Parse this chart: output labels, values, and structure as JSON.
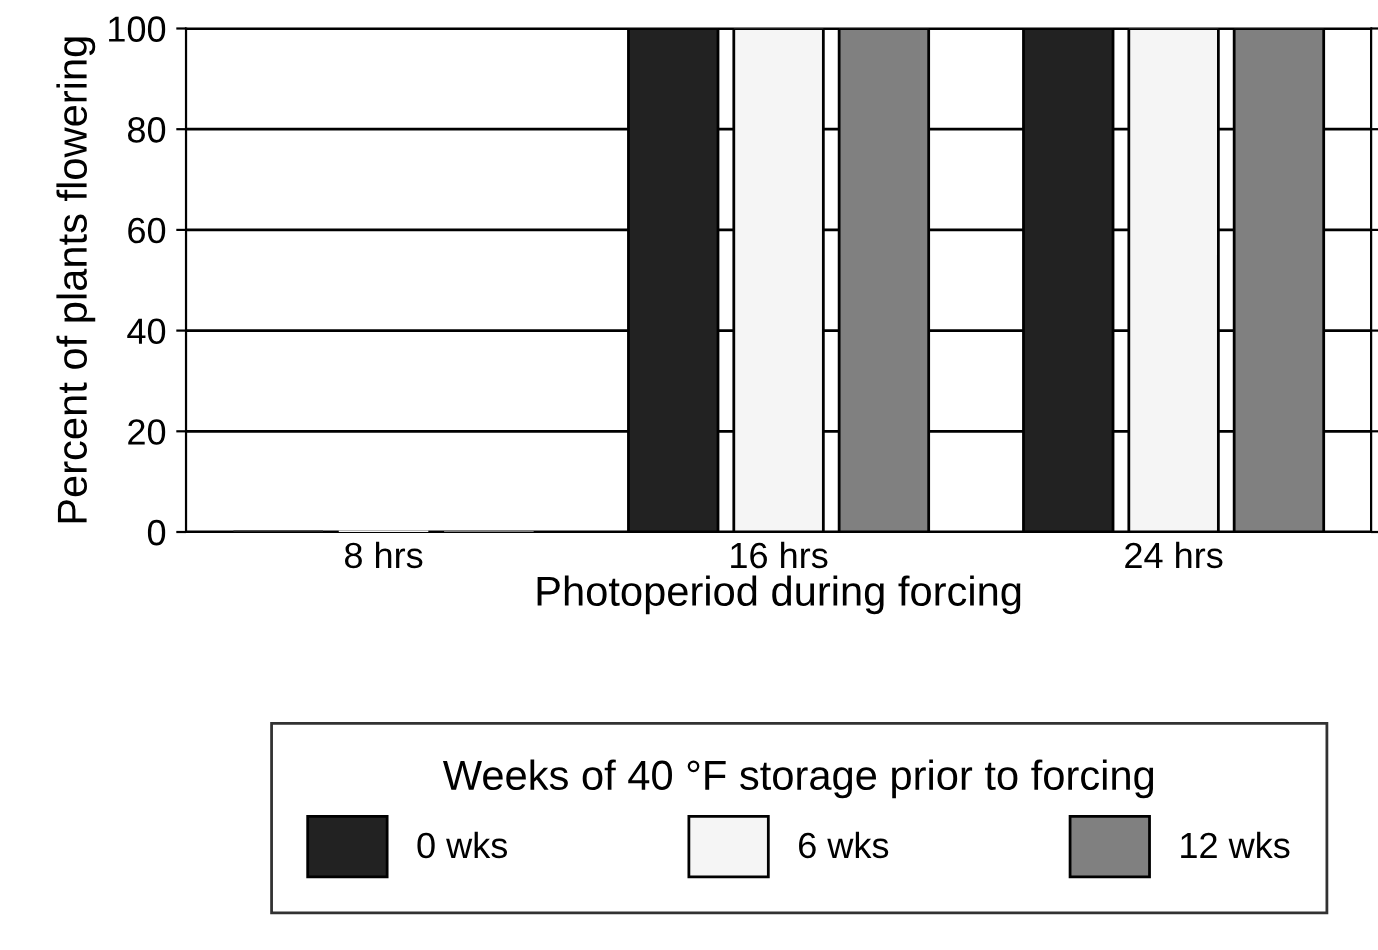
{
  "chart_data": {
    "type": "bar",
    "xlabel": "Photoperiod during forcing",
    "ylabel": "Percent of plants flowering",
    "legend_title": "Weeks of 40 °F storage prior to forcing",
    "categories": [
      "8 hrs",
      "16 hrs",
      "24 hrs"
    ],
    "series": [
      {
        "name": "0 wks",
        "color": "#222222",
        "values": [
          0,
          100,
          100
        ]
      },
      {
        "name": "6 wks",
        "color": "#f5f5f5",
        "values": [
          0,
          100,
          100
        ]
      },
      {
        "name": "12 wks",
        "color": "#808080",
        "values": [
          0,
          100,
          100
        ]
      }
    ],
    "ylim": [
      0,
      100
    ],
    "yticks": [
      0,
      20,
      40,
      60,
      80,
      100
    ],
    "grid": "y",
    "legend": "bottom"
  }
}
